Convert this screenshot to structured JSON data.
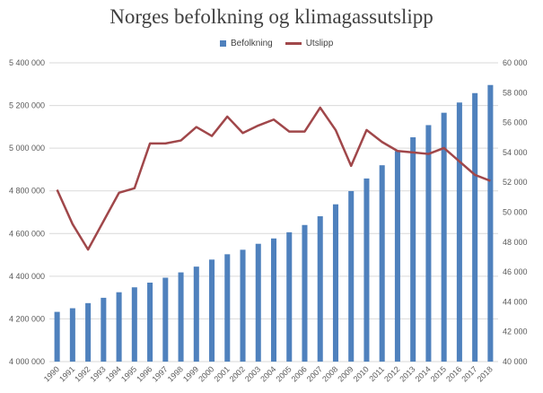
{
  "chart_data": {
    "type": "bar+line",
    "title": "Norges befolkning og klimagassutslipp",
    "legend_position": "top",
    "grid": true,
    "categories": [
      "1990",
      "1991",
      "1992",
      "1993",
      "1994",
      "1995",
      "1996",
      "1997",
      "1998",
      "1999",
      "2000",
      "2001",
      "2002",
      "2003",
      "2004",
      "2005",
      "2006",
      "2007",
      "2008",
      "2009",
      "2010",
      "2011",
      "2012",
      "2013",
      "2014",
      "2015",
      "2016",
      "2017",
      "2018"
    ],
    "series": [
      {
        "name": "Befolkning",
        "type": "bar",
        "axis": "left",
        "color": "#4f81bd",
        "values": [
          4233000,
          4250000,
          4274000,
          4299000,
          4325000,
          4348000,
          4370000,
          4393000,
          4418000,
          4445000,
          4478000,
          4503000,
          4524000,
          4552000,
          4577000,
          4606000,
          4640000,
          4681000,
          4737000,
          4799000,
          4858000,
          4920000,
          4986000,
          5051000,
          5108000,
          5166000,
          5214000,
          5258000,
          5296000
        ]
      },
      {
        "name": "Utslipp",
        "type": "line",
        "axis": "right",
        "color": "#a0474a",
        "values": [
          51500,
          49200,
          47500,
          49400,
          51300,
          51600,
          54600,
          54600,
          54800,
          55700,
          55100,
          56400,
          55300,
          55800,
          56200,
          55400,
          55400,
          57000,
          55500,
          53100,
          55500,
          54700,
          54100,
          54000,
          53900,
          54300,
          53400,
          52500,
          52100
        ]
      }
    ],
    "y_left": {
      "min": 4000000,
      "max": 5400000,
      "ticks": [
        "4 000 000",
        "4 200 000",
        "4 400 000",
        "4 600 000",
        "4 800 000",
        "5 000 000",
        "5 200 000",
        "5 400 000"
      ]
    },
    "y_right": {
      "min": 40000,
      "max": 60000,
      "ticks": [
        "40 000",
        "42 000",
        "44 000",
        "46 000",
        "48 000",
        "50 000",
        "52 000",
        "54 000",
        "56 000",
        "58 000",
        "60 000"
      ]
    }
  }
}
